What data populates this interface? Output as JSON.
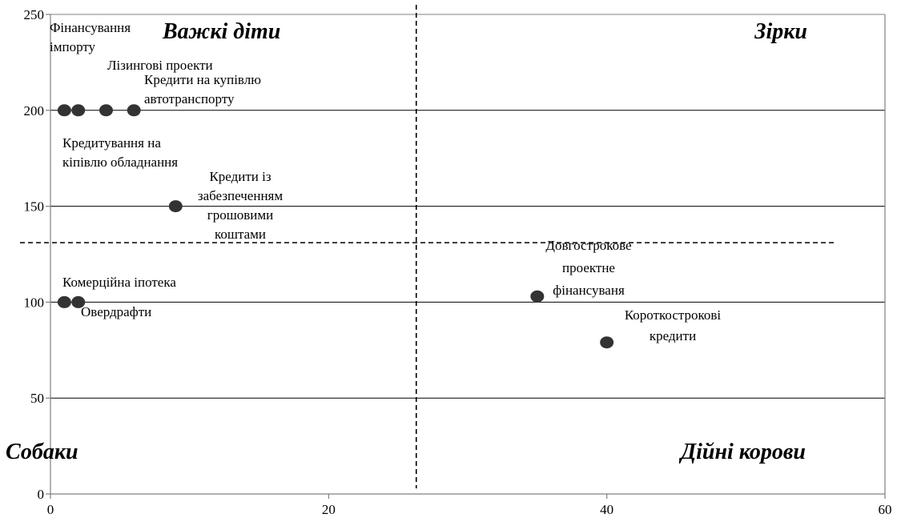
{
  "chart_data": {
    "type": "scatter",
    "title": "",
    "xlabel": "",
    "ylabel": "",
    "xlim": [
      0,
      60
    ],
    "ylim": [
      0,
      250
    ],
    "x_ticks": [
      "0",
      "20",
      "40",
      "60"
    ],
    "y_ticks": [
      "0",
      "50",
      "100",
      "150",
      "200",
      "250"
    ],
    "grid": "horizontal",
    "legend": "none",
    "divider_x": 26.3,
    "divider_y": 131,
    "quadrants": {
      "top_left": "Важкі діти",
      "top_right": "Зірки",
      "bottom_left": "Собаки",
      "bottom_right": "Дійні корови"
    },
    "points": [
      {
        "x": 1,
        "y": 200,
        "label": [
          "Фінансування",
          "імпорту"
        ]
      },
      {
        "x": 2,
        "y": 200,
        "label": [
          "Лізингові проекти"
        ]
      },
      {
        "x": 4,
        "y": 200,
        "label": [
          "Кредити на купівлю",
          "автотранспорту"
        ]
      },
      {
        "x": 6,
        "y": 200,
        "label": [
          "Кредитування на",
          "кіпівлю обладнання"
        ]
      },
      {
        "x": 9,
        "y": 150,
        "label": [
          "Кредити із",
          "забезпеченням",
          "грошовими",
          "коштами"
        ]
      },
      {
        "x": 1,
        "y": 100,
        "label": [
          "Комерційна іпотека"
        ]
      },
      {
        "x": 2,
        "y": 100,
        "label": [
          "Овердрафти"
        ]
      },
      {
        "x": 35,
        "y": 103,
        "label": [
          "Довгострокове",
          "проектне",
          "фінансуваня"
        ]
      },
      {
        "x": 40,
        "y": 79,
        "label": [
          "Короткострокові",
          "кредити"
        ]
      }
    ],
    "colors": {
      "point": "#333333",
      "grid": "#000000",
      "axis": "#808080"
    }
  }
}
